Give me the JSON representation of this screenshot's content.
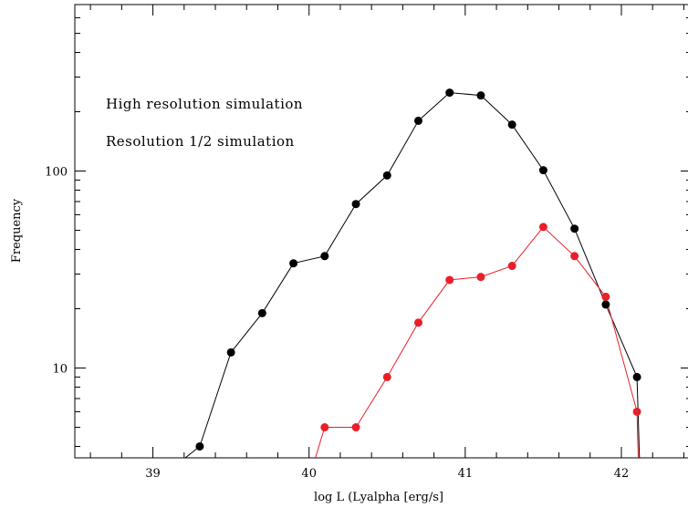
{
  "chart_data": {
    "type": "line",
    "title": "",
    "xlabel": "log L (Lyalpha [erg/s]",
    "ylabel": "Frequency",
    "xlim": [
      38.5,
      42.45
    ],
    "ylim": [
      3.5,
      700
    ],
    "yscale": "log",
    "grid": false,
    "legend_position": "top-left",
    "x_ticks": [
      "39",
      "40",
      "41",
      "42"
    ],
    "y_ticks": [
      "10",
      "100"
    ],
    "series": [
      {
        "name": "High resolution simulation",
        "color": "#000000",
        "points": [
          {
            "x": 39.1,
            "y": 3.0
          },
          {
            "x": 39.3,
            "y": 4
          },
          {
            "x": 39.5,
            "y": 12
          },
          {
            "x": 39.7,
            "y": 19
          },
          {
            "x": 39.9,
            "y": 34
          },
          {
            "x": 40.1,
            "y": 37
          },
          {
            "x": 40.3,
            "y": 68
          },
          {
            "x": 40.5,
            "y": 95
          },
          {
            "x": 40.7,
            "y": 180
          },
          {
            "x": 40.9,
            "y": 250
          },
          {
            "x": 41.1,
            "y": 242
          },
          {
            "x": 41.3,
            "y": 172
          },
          {
            "x": 41.5,
            "y": 101
          },
          {
            "x": 41.7,
            "y": 51
          },
          {
            "x": 41.9,
            "y": 21
          },
          {
            "x": 42.1,
            "y": 9
          },
          {
            "x": 42.13,
            "y": 1.5
          }
        ]
      },
      {
        "name": "Resolution 1/2 simulation",
        "color": "#e8202a",
        "points": [
          {
            "x": 39.9,
            "y": 1.5
          },
          {
            "x": 40.1,
            "y": 5
          },
          {
            "x": 40.3,
            "y": 5
          },
          {
            "x": 40.5,
            "y": 9
          },
          {
            "x": 40.7,
            "y": 17
          },
          {
            "x": 40.9,
            "y": 28
          },
          {
            "x": 41.1,
            "y": 29
          },
          {
            "x": 41.3,
            "y": 33
          },
          {
            "x": 41.5,
            "y": 52
          },
          {
            "x": 41.7,
            "y": 37
          },
          {
            "x": 41.9,
            "y": 23
          },
          {
            "x": 42.1,
            "y": 6
          },
          {
            "x": 42.12,
            "y": 1.5
          }
        ]
      }
    ]
  }
}
